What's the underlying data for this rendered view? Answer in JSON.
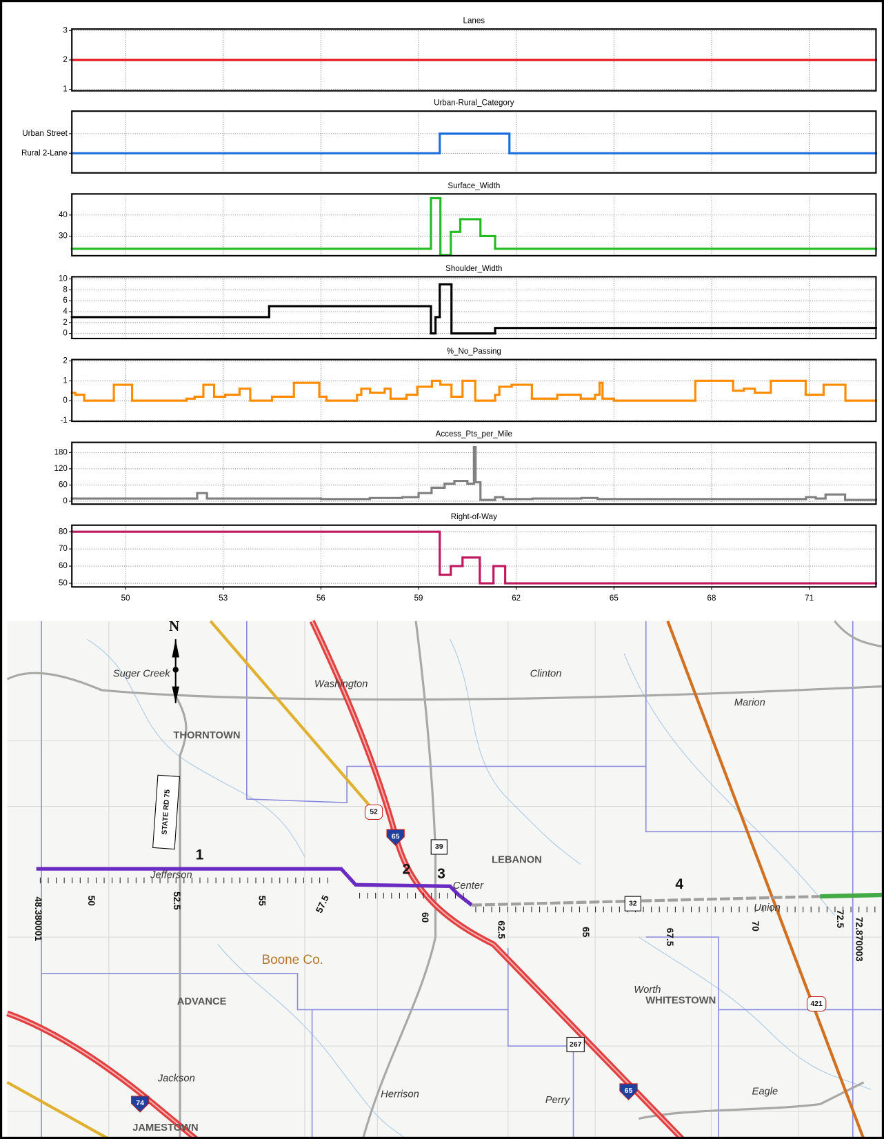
{
  "chart_data": [
    {
      "type": "step",
      "title": "Lanes",
      "x": [
        48.35
      ],
      "values": [
        2
      ],
      "color": "#e8101a",
      "xlim": [
        48.35,
        73.05
      ],
      "xticks": [
        50,
        53,
        56,
        59,
        62,
        65,
        68,
        71
      ],
      "ylim": [
        0.95,
        3.05
      ],
      "yticks": [
        1,
        2,
        3
      ],
      "grid": true
    },
    {
      "type": "step",
      "title": "Urban-Rural_Category",
      "x": [
        48.35,
        59.65,
        61.79
      ],
      "values": [
        0,
        1,
        0
      ],
      "color": "#1a6fdc",
      "xlim": [
        48.35,
        73.05
      ],
      "xticks": [
        50,
        53,
        56,
        59,
        62,
        65,
        68,
        71
      ],
      "ylim": [
        -1,
        2.15
      ],
      "yticks": [
        {
          "value": 1,
          "label": "Urban Street"
        },
        {
          "value": 0,
          "label": "Rural 2-Lane"
        }
      ],
      "grid": true
    },
    {
      "type": "step",
      "title": "Surface_Width",
      "x": [
        48.35,
        59.38,
        59.67,
        59.99,
        60.28,
        60.9,
        61.35
      ],
      "values": [
        24,
        48,
        21,
        32,
        38,
        30,
        24
      ],
      "color": "#22bb22",
      "xlim": [
        48.35,
        73.05
      ],
      "xticks": [
        50,
        53,
        56,
        59,
        62,
        65,
        68,
        71
      ],
      "ylim": [
        20.7,
        50
      ],
      "yticks": [
        30,
        40
      ],
      "grid": true
    },
    {
      "type": "step",
      "title": "Shoulder_Width",
      "x": [
        48.35,
        54.41,
        59.38,
        59.52,
        59.65,
        60.01,
        61.35
      ],
      "values": [
        3,
        5,
        0,
        3,
        9,
        0,
        1
      ],
      "color": "#000000",
      "xlim": [
        48.35,
        73.05
      ],
      "xticks": [
        50,
        53,
        56,
        59,
        62,
        65,
        68,
        71
      ],
      "ylim": [
        -0.93,
        10.4
      ],
      "yticks": [
        0,
        2,
        4,
        6,
        8,
        10
      ],
      "grid": true
    },
    {
      "type": "step",
      "title": "%_No_Passing",
      "x": [
        48.35,
        48.46,
        48.73,
        49.64,
        50.2,
        51.87,
        52.12,
        52.39,
        52.72,
        53.06,
        53.5,
        53.83,
        54.5,
        55.17,
        55.95,
        56.17,
        57.11,
        57.24,
        57.51,
        57.96,
        58.14,
        58.63,
        58.96,
        59.41,
        59.67,
        60.01,
        60.35,
        60.74,
        61.35,
        61.48,
        61.86,
        62.48,
        63.26,
        63.98,
        64.42,
        64.56,
        64.65,
        65.0,
        67.5,
        68.66,
        68.99,
        69.33,
        69.82,
        70.89,
        71.44,
        72.11
      ],
      "values": [
        0.4,
        0.3,
        0,
        0.8,
        0,
        0.1,
        0.2,
        0.8,
        0.2,
        0.3,
        0.6,
        0,
        0.2,
        0.9,
        0.2,
        0,
        0.3,
        0.6,
        0.4,
        0.6,
        0.1,
        0.3,
        0.7,
        1,
        0.8,
        0.2,
        1,
        0,
        0.3,
        0.7,
        0.8,
        0.1,
        0.3,
        0.1,
        0.3,
        0.9,
        0.1,
        0,
        1,
        0.5,
        0.6,
        0.4,
        1,
        0.3,
        0.8,
        0
      ],
      "color": "#ff8c00",
      "xlim": [
        48.35,
        73.05
      ],
      "xticks": [
        50,
        53,
        56,
        59,
        62,
        65,
        68,
        71
      ],
      "ylim": [
        -1.04,
        2.07
      ],
      "yticks": [
        -1,
        0,
        1,
        2
      ],
      "grid": true
    },
    {
      "type": "step",
      "title": "Access_Pts_per_Mile",
      "x": [
        48.35,
        52.2,
        52.5,
        56,
        57.5,
        58.5,
        59,
        59.4,
        59.8,
        60.1,
        60.5,
        60.7,
        60.75,
        60.9,
        61.35,
        61.6,
        62.5,
        64,
        64.5,
        70.9,
        71.2,
        71.5,
        72.1
      ],
      "values": [
        10,
        30,
        10,
        8,
        12,
        15,
        30,
        50,
        65,
        75,
        65,
        200,
        70,
        5,
        15,
        8,
        10,
        12,
        8,
        15,
        10,
        25,
        5
      ],
      "color": "#808080",
      "xlim": [
        48.35,
        73.05
      ],
      "xticks": [
        50,
        53,
        56,
        59,
        62,
        65,
        68,
        71
      ],
      "ylim": [
        -10.7,
        217.6
      ],
      "yticks": [
        0,
        60,
        120,
        180
      ],
      "grid": true
    },
    {
      "type": "step",
      "title": "Right-of-Way",
      "x": [
        48.35,
        59.65,
        59.99,
        60.35,
        60.88,
        61.3,
        61.66
      ],
      "values": [
        80,
        55,
        60,
        65,
        50,
        60,
        50
      ],
      "color": "#c0185f",
      "xlim": [
        48.35,
        73.05
      ],
      "xticks": [
        50,
        53,
        56,
        59,
        62,
        65,
        68,
        71
      ],
      "ylim": [
        47.9,
        83.8
      ],
      "yticks": [
        50,
        60,
        70,
        80
      ],
      "grid": true
    }
  ],
  "map": {
    "labels": [
      "N",
      "Suger Creek",
      "Washington",
      "Clinton",
      "Marion",
      "THORNTOWN",
      "STATE RD 75",
      "52",
      "65",
      "39",
      "LEBANON",
      "1",
      "2",
      "3",
      "4",
      "Jefferson",
      "Center",
      "Union",
      "32",
      "48.380001",
      "50",
      "52.5",
      "55",
      "57.5",
      "60",
      "62.5",
      "65",
      "67.5",
      "70",
      "72.5",
      "72.870003",
      "Boone Co.",
      "ADVANCE",
      "Worth",
      "WHITESTOWN",
      "421",
      "267",
      "Jackson",
      "Herrison",
      "Perry",
      "65",
      "Eagle",
      "74",
      "JAMESTOWN"
    ]
  }
}
